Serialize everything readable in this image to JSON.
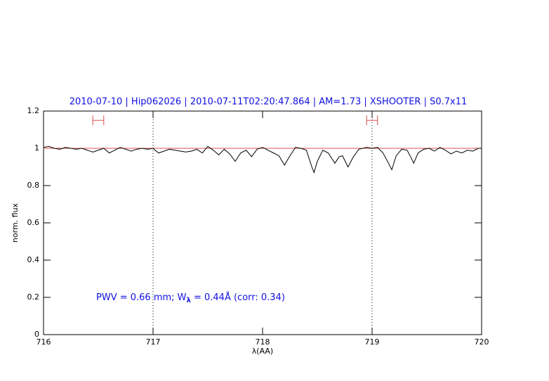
{
  "chart_data": {
    "type": "line",
    "title": "2010-07-10 | Hip062026 | 2010-07-11T02:20:47.864 | AM=1.73 | XSHOOTER | S0.7x11",
    "x_label": "λ(AA)",
    "y_label": "norm. flux",
    "annotation": {
      "prefix": "PWV = 0.66 mm; W",
      "subscript": "λ",
      "suffix": " = 0.44Å (corr: 0.34)"
    },
    "xlim": [
      716,
      720
    ],
    "ylim": [
      0,
      1.2
    ],
    "xticks": [
      716,
      717,
      718,
      719,
      720
    ],
    "yticks": [
      0,
      0.2,
      0.4,
      0.6,
      0.8,
      1,
      1.2
    ],
    "continuum": 1,
    "continuum_color": "#e05050",
    "vlines": [
      717,
      719
    ],
    "ranges": {
      "y": 1.15,
      "color": "#e05050",
      "x": [
        [
          716.45,
          716.55
        ],
        [
          718.95,
          719.05
        ]
      ]
    },
    "series": [
      {
        "color": "#000000",
        "x": [
          716.0,
          716.05,
          716.1,
          716.15,
          716.2,
          716.25,
          716.3,
          716.35,
          716.4,
          716.45,
          716.5,
          716.55,
          716.6,
          716.65,
          716.7,
          716.75,
          716.8,
          716.85,
          716.9,
          716.95,
          717.0,
          717.05,
          717.1,
          717.15,
          717.2,
          717.25,
          717.3,
          717.35,
          717.4,
          717.45,
          717.5,
          717.55,
          717.6,
          717.65,
          717.7,
          717.75,
          717.8,
          717.85,
          717.9,
          717.95,
          718.0,
          718.05,
          718.1,
          718.15,
          718.2,
          718.25,
          718.3,
          718.35,
          718.4,
          718.45,
          718.47,
          718.5,
          718.55,
          718.6,
          718.66,
          718.7,
          718.73,
          718.78,
          718.83,
          718.88,
          718.95,
          719.0,
          719.05,
          719.1,
          719.15,
          719.18,
          719.22,
          719.27,
          719.32,
          719.36,
          719.38,
          719.42,
          719.47,
          719.52,
          719.57,
          719.62,
          719.67,
          719.72,
          719.77,
          719.82,
          719.87,
          719.92,
          719.97,
          720.0
        ],
        "values": [
          1.005,
          1.01,
          1.0,
          0.995,
          1.005,
          1.0,
          0.995,
          1.0,
          0.99,
          0.98,
          0.99,
          1.0,
          0.975,
          0.99,
          1.005,
          0.995,
          0.985,
          0.995,
          1.0,
          0.995,
          1.0,
          0.975,
          0.985,
          0.995,
          0.99,
          0.985,
          0.98,
          0.985,
          0.995,
          0.975,
          1.01,
          0.99,
          0.965,
          0.995,
          0.97,
          0.93,
          0.975,
          0.99,
          0.955,
          0.995,
          1.005,
          0.99,
          0.975,
          0.96,
          0.91,
          0.96,
          1.005,
          1.0,
          0.99,
          0.9,
          0.87,
          0.93,
          0.99,
          0.975,
          0.92,
          0.955,
          0.96,
          0.9,
          0.955,
          0.995,
          1.005,
          1.0,
          1.005,
          0.975,
          0.92,
          0.885,
          0.96,
          0.995,
          0.99,
          0.945,
          0.92,
          0.975,
          0.995,
          1.0,
          0.985,
          1.005,
          0.99,
          0.97,
          0.985,
          0.975,
          0.99,
          0.985,
          1.0,
          1.0
        ]
      }
    ]
  }
}
